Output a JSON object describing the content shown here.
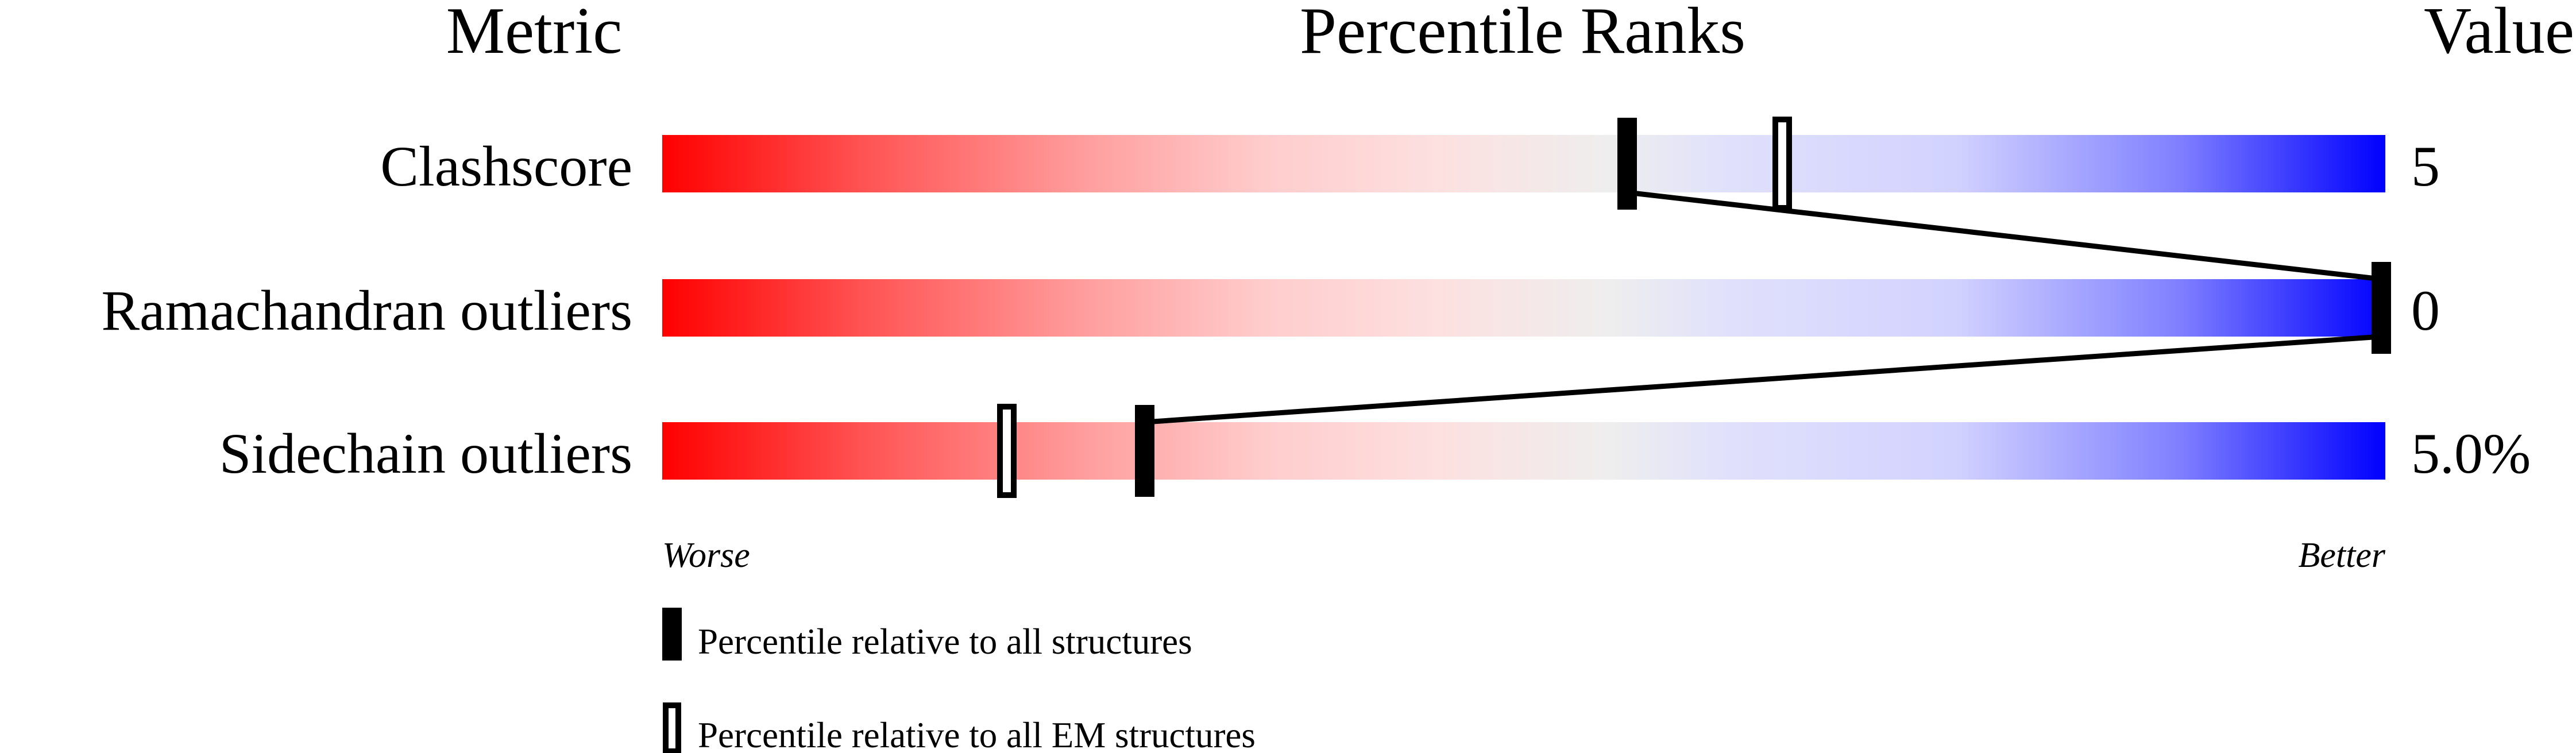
{
  "chart_data": {
    "type": "percentile-ranks",
    "headers": {
      "metric": "Metric",
      "ranks": "Percentile Ranks",
      "value": "Value"
    },
    "xlim": [
      0,
      100
    ],
    "gradient_colors": [
      "#ff0000",
      "#eeeeee",
      "#0000ff"
    ],
    "rows": [
      {
        "label": "Clashscore",
        "value": "5",
        "pct_all": 56,
        "pct_em": 65
      },
      {
        "label": "Ramachandran outliers",
        "value": "0",
        "pct_all": 100,
        "pct_em": 100
      },
      {
        "label": "Sidechain outliers",
        "value": "5.0%",
        "pct_all": 28,
        "pct_em": 20
      }
    ],
    "axis": {
      "left": "Worse",
      "right": "Better"
    },
    "legend": [
      {
        "marker": "filled",
        "label": "Percentile relative to all structures"
      },
      {
        "marker": "open",
        "label": "Percentile relative to all EM structures"
      }
    ]
  }
}
